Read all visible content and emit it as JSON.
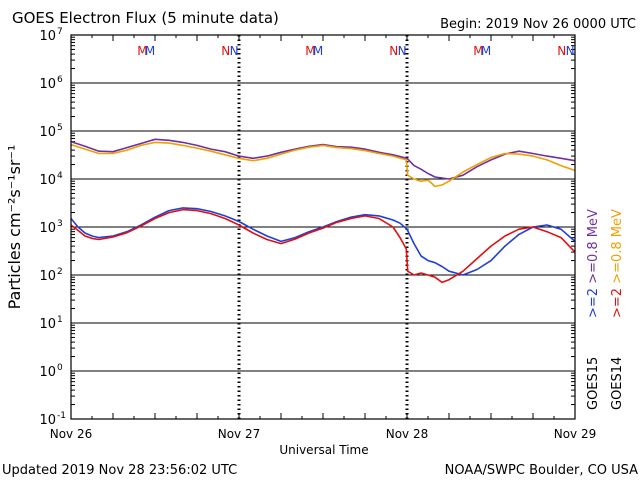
{
  "header": {
    "title": "GOES Electron Flux (5 minute data)",
    "begin": "Begin: 2019 Nov 26 0000 UTC"
  },
  "footer": {
    "updated": "Updated 2019 Nov 28 23:56:02 UTC",
    "credit": "NOAA/SWPC Boulder, CO USA"
  },
  "colors": {
    "goes15_high": "#1f3fd8",
    "goes14_high": "#e01010",
    "goes15_low": "#7030a0",
    "goes14_low": "#f0a000",
    "grid": "#000000"
  },
  "chart_data": {
    "type": "line",
    "title": "GOES Electron Flux (5 minute data)",
    "xlabel": "Universal Time",
    "ylabel": "Particles cm⁻²s⁻¹sr⁻¹",
    "y_scale": "log",
    "ylim": [
      0.1,
      10000000
    ],
    "y_ticks": [
      {
        "value": 0.1,
        "base": "10",
        "exp": "-1"
      },
      {
        "value": 1,
        "base": "10",
        "exp": "0"
      },
      {
        "value": 10,
        "base": "10",
        "exp": "1"
      },
      {
        "value": 100,
        "base": "10",
        "exp": "2"
      },
      {
        "value": 1000,
        "base": "10",
        "exp": "3"
      },
      {
        "value": 10000,
        "base": "10",
        "exp": "4"
      },
      {
        "value": 100000,
        "base": "10",
        "exp": "5"
      },
      {
        "value": 1000000,
        "base": "10",
        "exp": "6"
      },
      {
        "value": 10000000,
        "base": "10",
        "exp": "7"
      }
    ],
    "xlim": [
      0,
      72
    ],
    "x_ticks": [
      {
        "hour": 0,
        "label": "Nov 26"
      },
      {
        "hour": 24,
        "label": "Nov 27"
      },
      {
        "hour": 48,
        "label": "Nov 28"
      },
      {
        "hour": 72,
        "label": "Nov 29"
      }
    ],
    "threshold": 1000,
    "markers": [
      {
        "hour": 10.2,
        "label": "M",
        "color": "#e01010"
      },
      {
        "hour": 11.3,
        "label": "M",
        "color": "#1f3fd8"
      },
      {
        "hour": 22.1,
        "label": "N",
        "color": "#e01010"
      },
      {
        "hour": 23.3,
        "label": "N",
        "color": "#1f3fd8"
      },
      {
        "hour": 34.2,
        "label": "M",
        "color": "#e01010"
      },
      {
        "hour": 35.3,
        "label": "M",
        "color": "#1f3fd8"
      },
      {
        "hour": 46.1,
        "label": "N",
        "color": "#e01010"
      },
      {
        "hour": 47.3,
        "label": "N",
        "color": "#1f3fd8"
      },
      {
        "hour": 58.2,
        "label": "M",
        "color": "#e01010"
      },
      {
        "hour": 59.3,
        "label": "M",
        "color": "#1f3fd8"
      },
      {
        "hour": 70.1,
        "label": "N",
        "color": "#e01010"
      },
      {
        "hour": 71.3,
        "label": "N",
        "color": "#1f3fd8"
      }
    ],
    "series": [
      {
        "name": "GOES15 >=0.8 MeV",
        "color": "#7030a0",
        "x": [
          0,
          2,
          4,
          6,
          8,
          10,
          12,
          14,
          16,
          18,
          20,
          22,
          24,
          26,
          28,
          30,
          32,
          34,
          36,
          38,
          40,
          42,
          44,
          46,
          48,
          49,
          50,
          51,
          52,
          54,
          56,
          58,
          60,
          62,
          64,
          66,
          68,
          70,
          72
        ],
        "y": [
          60000,
          48000,
          38000,
          37000,
          45000,
          55000,
          67000,
          64000,
          58000,
          50000,
          42000,
          37000,
          30000,
          27000,
          30000,
          36000,
          42000,
          48000,
          52000,
          47000,
          46000,
          42000,
          36000,
          32000,
          27000,
          19000,
          16000,
          13000,
          11000,
          10000,
          12000,
          18000,
          25000,
          33000,
          38000,
          34000,
          30000,
          27000,
          24000
        ]
      },
      {
        "name": "GOES14 >=0.8 MeV",
        "color": "#f0a000",
        "x": [
          0,
          2,
          4,
          6,
          8,
          10,
          12,
          14,
          16,
          18,
          20,
          22,
          24,
          26,
          28,
          30,
          32,
          34,
          36,
          38,
          40,
          42,
          44,
          46,
          47.9,
          48.1,
          49,
          50,
          51,
          52,
          53,
          54,
          56,
          58,
          60,
          62,
          64,
          66,
          68,
          70,
          72
        ],
        "y": [
          52000,
          42000,
          34000,
          34000,
          40000,
          50000,
          58000,
          56000,
          50000,
          44000,
          38000,
          32000,
          27000,
          24000,
          27000,
          33000,
          40000,
          46000,
          50000,
          45000,
          43000,
          39000,
          34000,
          30000,
          25000,
          12000,
          10000,
          9000,
          9500,
          7000,
          7500,
          9000,
          14000,
          20000,
          28000,
          34000,
          33000,
          30000,
          25000,
          19000,
          15000
        ]
      },
      {
        "name": "GOES15 >=2 MeV",
        "color": "#1f3fd8",
        "x": [
          0,
          1,
          2,
          3,
          4,
          6,
          8,
          10,
          12,
          14,
          16,
          18,
          20,
          22,
          24,
          26,
          28,
          30,
          32,
          34,
          36,
          38,
          40,
          42,
          44,
          46,
          47,
          48,
          49,
          50,
          51,
          52,
          53,
          54,
          56,
          58,
          60,
          62,
          64,
          66,
          68,
          70,
          72
        ],
        "y": [
          1500,
          1000,
          750,
          650,
          600,
          650,
          800,
          1100,
          1600,
          2200,
          2500,
          2400,
          2100,
          1700,
          1300,
          900,
          650,
          500,
          600,
          800,
          1000,
          1300,
          1600,
          1800,
          1700,
          1400,
          1200,
          900,
          450,
          250,
          200,
          180,
          150,
          120,
          100,
          130,
          200,
          400,
          700,
          1000,
          1100,
          900,
          500
        ]
      },
      {
        "name": "GOES14 >=2 MeV",
        "color": "#e01010",
        "x": [
          0,
          1,
          2,
          3,
          4,
          6,
          8,
          10,
          12,
          14,
          16,
          18,
          20,
          22,
          24,
          26,
          28,
          30,
          32,
          34,
          36,
          38,
          40,
          42,
          44,
          46,
          47,
          47.9,
          48.1,
          49,
          50,
          51,
          52,
          53,
          54,
          56,
          58,
          60,
          62,
          64,
          66,
          68,
          70,
          72
        ],
        "y": [
          1100,
          850,
          650,
          580,
          550,
          620,
          760,
          1050,
          1500,
          2000,
          2300,
          2200,
          1900,
          1500,
          1100,
          750,
          550,
          450,
          560,
          750,
          950,
          1250,
          1500,
          1700,
          1500,
          1000,
          600,
          350,
          120,
          100,
          110,
          100,
          90,
          70,
          80,
          120,
          220,
          400,
          650,
          900,
          1000,
          800,
          600,
          300
        ]
      }
    ],
    "legend": [
      {
        "column": 0,
        "segments": [
          {
            "text": ">=2 ",
            "color": "#1f3fd8"
          },
          {
            "text": ">=0.8 MeV",
            "color": "#7030a0"
          }
        ]
      },
      {
        "column": 1,
        "segments": [
          {
            "text": ">=2 ",
            "color": "#e01010"
          },
          {
            "text": ">=0.8 MeV",
            "color": "#f0a000"
          }
        ]
      }
    ],
    "sat_labels": [
      {
        "column": 0,
        "text": "GOES15",
        "color": "#000000"
      },
      {
        "column": 1,
        "text": "GOES14",
        "color": "#000000"
      }
    ],
    "grid": true
  }
}
